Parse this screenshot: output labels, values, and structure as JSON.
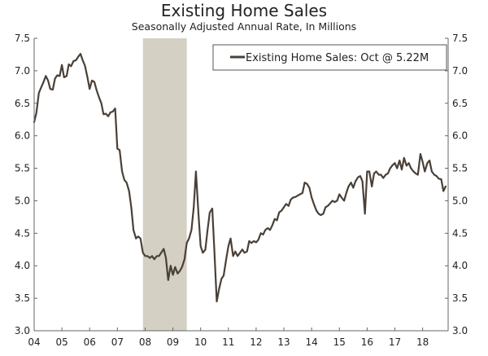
{
  "chart_data": {
    "type": "line",
    "title": "Existing Home Sales",
    "subtitle": "Seasonally Adjusted Annual Rate, In Millions",
    "ylim": [
      3.0,
      7.5
    ],
    "yticks": [
      "3.0",
      "3.5",
      "4.0",
      "4.5",
      "5.0",
      "5.5",
      "6.0",
      "6.5",
      "7.0",
      "7.5"
    ],
    "xlim": [
      2004.0,
      2018.92
    ],
    "xticks": [
      "04",
      "05",
      "06",
      "07",
      "08",
      "09",
      "10",
      "11",
      "12",
      "13",
      "14",
      "15",
      "16",
      "17",
      "18"
    ],
    "grid": false,
    "legend_position": "top-right",
    "colors": {
      "line": "#4a4037",
      "recession": "#d4d0c4",
      "axis": "#666666"
    },
    "recession": {
      "start": 2007.92,
      "end": 2009.5
    },
    "series": [
      {
        "name": "Existing Home Sales: Oct @ 5.22M",
        "points": [
          [
            2004.0,
            6.21
          ],
          [
            2004.08,
            6.35
          ],
          [
            2004.17,
            6.66
          ],
          [
            2004.25,
            6.74
          ],
          [
            2004.33,
            6.82
          ],
          [
            2004.42,
            6.92
          ],
          [
            2004.5,
            6.85
          ],
          [
            2004.58,
            6.72
          ],
          [
            2004.67,
            6.71
          ],
          [
            2004.75,
            6.88
          ],
          [
            2004.83,
            6.93
          ],
          [
            2004.92,
            6.92
          ],
          [
            2005.0,
            7.09
          ],
          [
            2005.08,
            6.9
          ],
          [
            2005.17,
            6.92
          ],
          [
            2005.25,
            7.1
          ],
          [
            2005.33,
            7.07
          ],
          [
            2005.42,
            7.15
          ],
          [
            2005.5,
            7.16
          ],
          [
            2005.58,
            7.21
          ],
          [
            2005.67,
            7.26
          ],
          [
            2005.75,
            7.16
          ],
          [
            2005.83,
            7.08
          ],
          [
            2005.92,
            6.9
          ],
          [
            2006.0,
            6.72
          ],
          [
            2006.08,
            6.85
          ],
          [
            2006.17,
            6.83
          ],
          [
            2006.25,
            6.7
          ],
          [
            2006.33,
            6.6
          ],
          [
            2006.42,
            6.5
          ],
          [
            2006.5,
            6.33
          ],
          [
            2006.58,
            6.34
          ],
          [
            2006.67,
            6.3
          ],
          [
            2006.75,
            6.36
          ],
          [
            2006.83,
            6.37
          ],
          [
            2006.92,
            6.42
          ],
          [
            2007.0,
            5.8
          ],
          [
            2007.08,
            5.78
          ],
          [
            2007.17,
            5.45
          ],
          [
            2007.25,
            5.32
          ],
          [
            2007.33,
            5.28
          ],
          [
            2007.42,
            5.15
          ],
          [
            2007.5,
            4.9
          ],
          [
            2007.58,
            4.55
          ],
          [
            2007.67,
            4.42
          ],
          [
            2007.75,
            4.45
          ],
          [
            2007.83,
            4.42
          ],
          [
            2007.92,
            4.2
          ],
          [
            2008.0,
            4.15
          ],
          [
            2008.08,
            4.15
          ],
          [
            2008.17,
            4.12
          ],
          [
            2008.25,
            4.15
          ],
          [
            2008.33,
            4.1
          ],
          [
            2008.42,
            4.15
          ],
          [
            2008.5,
            4.15
          ],
          [
            2008.58,
            4.2
          ],
          [
            2008.67,
            4.26
          ],
          [
            2008.75,
            4.12
          ],
          [
            2008.83,
            3.78
          ],
          [
            2008.92,
            4.0
          ],
          [
            2009.0,
            3.86
          ],
          [
            2009.08,
            3.98
          ],
          [
            2009.17,
            3.88
          ],
          [
            2009.25,
            3.92
          ],
          [
            2009.33,
            3.98
          ],
          [
            2009.42,
            4.1
          ],
          [
            2009.5,
            4.35
          ],
          [
            2009.58,
            4.42
          ],
          [
            2009.67,
            4.55
          ],
          [
            2009.75,
            4.9
          ],
          [
            2009.83,
            5.45
          ],
          [
            2009.92,
            4.8
          ],
          [
            2010.0,
            4.3
          ],
          [
            2010.08,
            4.2
          ],
          [
            2010.17,
            4.25
          ],
          [
            2010.25,
            4.55
          ],
          [
            2010.33,
            4.82
          ],
          [
            2010.42,
            4.88
          ],
          [
            2010.5,
            4.2
          ],
          [
            2010.58,
            3.45
          ],
          [
            2010.67,
            3.65
          ],
          [
            2010.75,
            3.8
          ],
          [
            2010.83,
            3.85
          ],
          [
            2010.92,
            4.1
          ],
          [
            2011.0,
            4.3
          ],
          [
            2011.08,
            4.42
          ],
          [
            2011.17,
            4.15
          ],
          [
            2011.25,
            4.22
          ],
          [
            2011.33,
            4.15
          ],
          [
            2011.42,
            4.2
          ],
          [
            2011.5,
            4.25
          ],
          [
            2011.58,
            4.2
          ],
          [
            2011.67,
            4.22
          ],
          [
            2011.75,
            4.38
          ],
          [
            2011.83,
            4.35
          ],
          [
            2011.92,
            4.38
          ],
          [
            2012.0,
            4.36
          ],
          [
            2012.08,
            4.4
          ],
          [
            2012.17,
            4.5
          ],
          [
            2012.25,
            4.48
          ],
          [
            2012.33,
            4.55
          ],
          [
            2012.42,
            4.58
          ],
          [
            2012.5,
            4.55
          ],
          [
            2012.58,
            4.62
          ],
          [
            2012.67,
            4.72
          ],
          [
            2012.75,
            4.7
          ],
          [
            2012.83,
            4.82
          ],
          [
            2012.92,
            4.85
          ],
          [
            2013.0,
            4.9
          ],
          [
            2013.08,
            4.95
          ],
          [
            2013.17,
            4.92
          ],
          [
            2013.25,
            5.02
          ],
          [
            2013.33,
            5.05
          ],
          [
            2013.42,
            5.06
          ],
          [
            2013.5,
            5.08
          ],
          [
            2013.58,
            5.1
          ],
          [
            2013.67,
            5.12
          ],
          [
            2013.75,
            5.28
          ],
          [
            2013.83,
            5.26
          ],
          [
            2013.92,
            5.2
          ],
          [
            2014.0,
            5.05
          ],
          [
            2014.08,
            4.95
          ],
          [
            2014.17,
            4.85
          ],
          [
            2014.25,
            4.8
          ],
          [
            2014.33,
            4.78
          ],
          [
            2014.42,
            4.8
          ],
          [
            2014.5,
            4.9
          ],
          [
            2014.58,
            4.92
          ],
          [
            2014.67,
            4.96
          ],
          [
            2014.75,
            5.0
          ],
          [
            2014.83,
            4.98
          ],
          [
            2014.92,
            5.0
          ],
          [
            2015.0,
            5.1
          ],
          [
            2015.08,
            5.05
          ],
          [
            2015.17,
            5.0
          ],
          [
            2015.25,
            5.12
          ],
          [
            2015.33,
            5.22
          ],
          [
            2015.42,
            5.28
          ],
          [
            2015.5,
            5.2
          ],
          [
            2015.58,
            5.3
          ],
          [
            2015.67,
            5.36
          ],
          [
            2015.75,
            5.38
          ],
          [
            2015.83,
            5.3
          ],
          [
            2015.92,
            4.8
          ],
          [
            2016.0,
            5.45
          ],
          [
            2016.08,
            5.45
          ],
          [
            2016.17,
            5.22
          ],
          [
            2016.25,
            5.42
          ],
          [
            2016.33,
            5.45
          ],
          [
            2016.42,
            5.4
          ],
          [
            2016.5,
            5.4
          ],
          [
            2016.58,
            5.35
          ],
          [
            2016.67,
            5.4
          ],
          [
            2016.75,
            5.42
          ],
          [
            2016.83,
            5.5
          ],
          [
            2016.92,
            5.55
          ],
          [
            2017.0,
            5.58
          ],
          [
            2017.08,
            5.5
          ],
          [
            2017.17,
            5.62
          ],
          [
            2017.25,
            5.48
          ],
          [
            2017.33,
            5.66
          ],
          [
            2017.42,
            5.54
          ],
          [
            2017.5,
            5.58
          ],
          [
            2017.58,
            5.5
          ],
          [
            2017.67,
            5.45
          ],
          [
            2017.75,
            5.42
          ],
          [
            2017.83,
            5.4
          ],
          [
            2017.92,
            5.72
          ],
          [
            2018.0,
            5.6
          ],
          [
            2018.08,
            5.45
          ],
          [
            2018.17,
            5.58
          ],
          [
            2018.25,
            5.62
          ],
          [
            2018.33,
            5.45
          ],
          [
            2018.42,
            5.4
          ],
          [
            2018.5,
            5.38
          ],
          [
            2018.58,
            5.34
          ],
          [
            2018.67,
            5.33
          ],
          [
            2018.75,
            5.15
          ],
          [
            2018.83,
            5.22
          ]
        ]
      }
    ]
  }
}
